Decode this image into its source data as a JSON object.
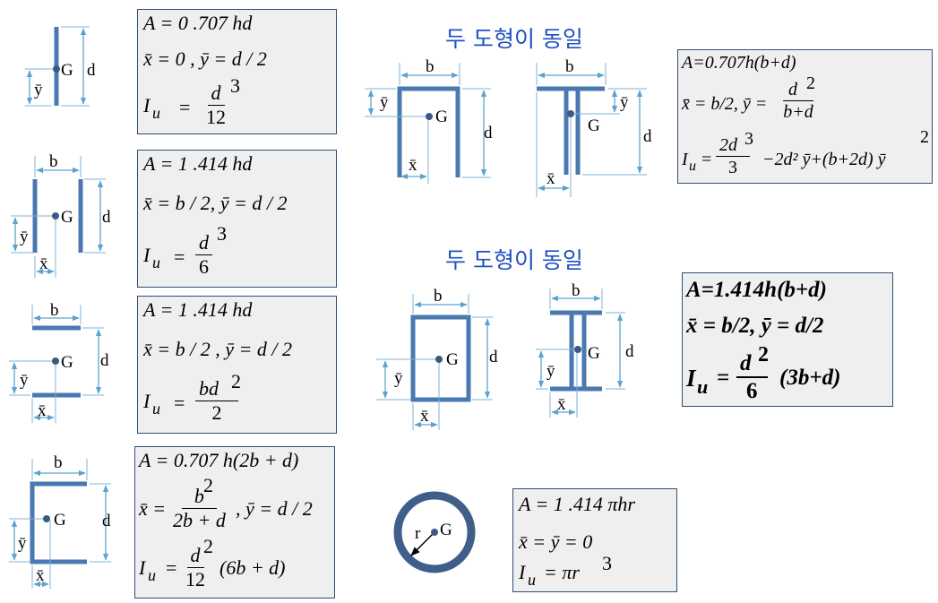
{
  "headings": {
    "same_top": "두 도형이 동일",
    "same_bottom": "두 도형이 동일"
  },
  "figure_labels": {
    "b": "b",
    "d": "d",
    "G": "G",
    "x": "x̄",
    "y": "ȳ",
    "r": "r"
  },
  "formulas": {
    "f1": {
      "A": "A = 0 .707   hd",
      "xy": "x̄  =  0 ,  ȳ  =  d  / 2",
      "Iu": "I",
      "Iu_sub": "u",
      "eq": "=",
      "num": "d",
      "exp": "3",
      "den": "12"
    },
    "f2": {
      "A": "A = 1 .414  hd",
      "xy": "x̄ = b / 2,  ȳ = d / 2",
      "Iu": "I",
      "Iu_sub": "u",
      "eq": "=",
      "num": "d",
      "exp": "3",
      "den": "6"
    },
    "f3": {
      "A": "A = 1 .414  hd",
      "xy": "x̄ = b / 2 ,  ȳ = d / 2",
      "Iu": "I",
      "Iu_sub": "u",
      "eq": "=",
      "num": "bd",
      "exp": "2",
      "den": "2"
    },
    "f4": {
      "A": "A = 0.707  h(2b + d)",
      "x_lhs": "x̄ =",
      "x_num": "b",
      "x_num_exp": "2",
      "x_den": "2b + d",
      "y_part": ", ȳ = d / 2",
      "Iu": "I",
      "Iu_sub": "u",
      "eq": "=",
      "num": "d",
      "exp": "2",
      "den": "12",
      "tail": "(6b + d)"
    },
    "f5": {
      "A": "A=0.707h(b+d)",
      "x_part": "x̄ = b/2, ȳ =",
      "y_num": "d",
      "y_num_exp": "2",
      "y_den": "b+d",
      "Iu": "I",
      "Iu_sub": "u",
      "eq": "=",
      "num": "2d",
      "num_exp": "3",
      "den": "3",
      "tail": "−2d² ȳ+(b+2d) ȳ",
      "tail_exp": "2"
    },
    "f6": {
      "A": "A=1.414h(b+d)",
      "xy": "x̄ = b/2, ȳ = d/2",
      "Iu": "I",
      "Iu_sub": "u",
      "eq": "=",
      "num": "d",
      "num_exp": "2",
      "den": "6",
      "tail": "(3b+d)"
    },
    "f7": {
      "A": "A = 1 .414  πhr",
      "xy": "x̄  =  ȳ  =  0",
      "Iu": "I",
      "Iu_sub": "u",
      "rhs": "= πr",
      "exp": "3"
    }
  }
}
